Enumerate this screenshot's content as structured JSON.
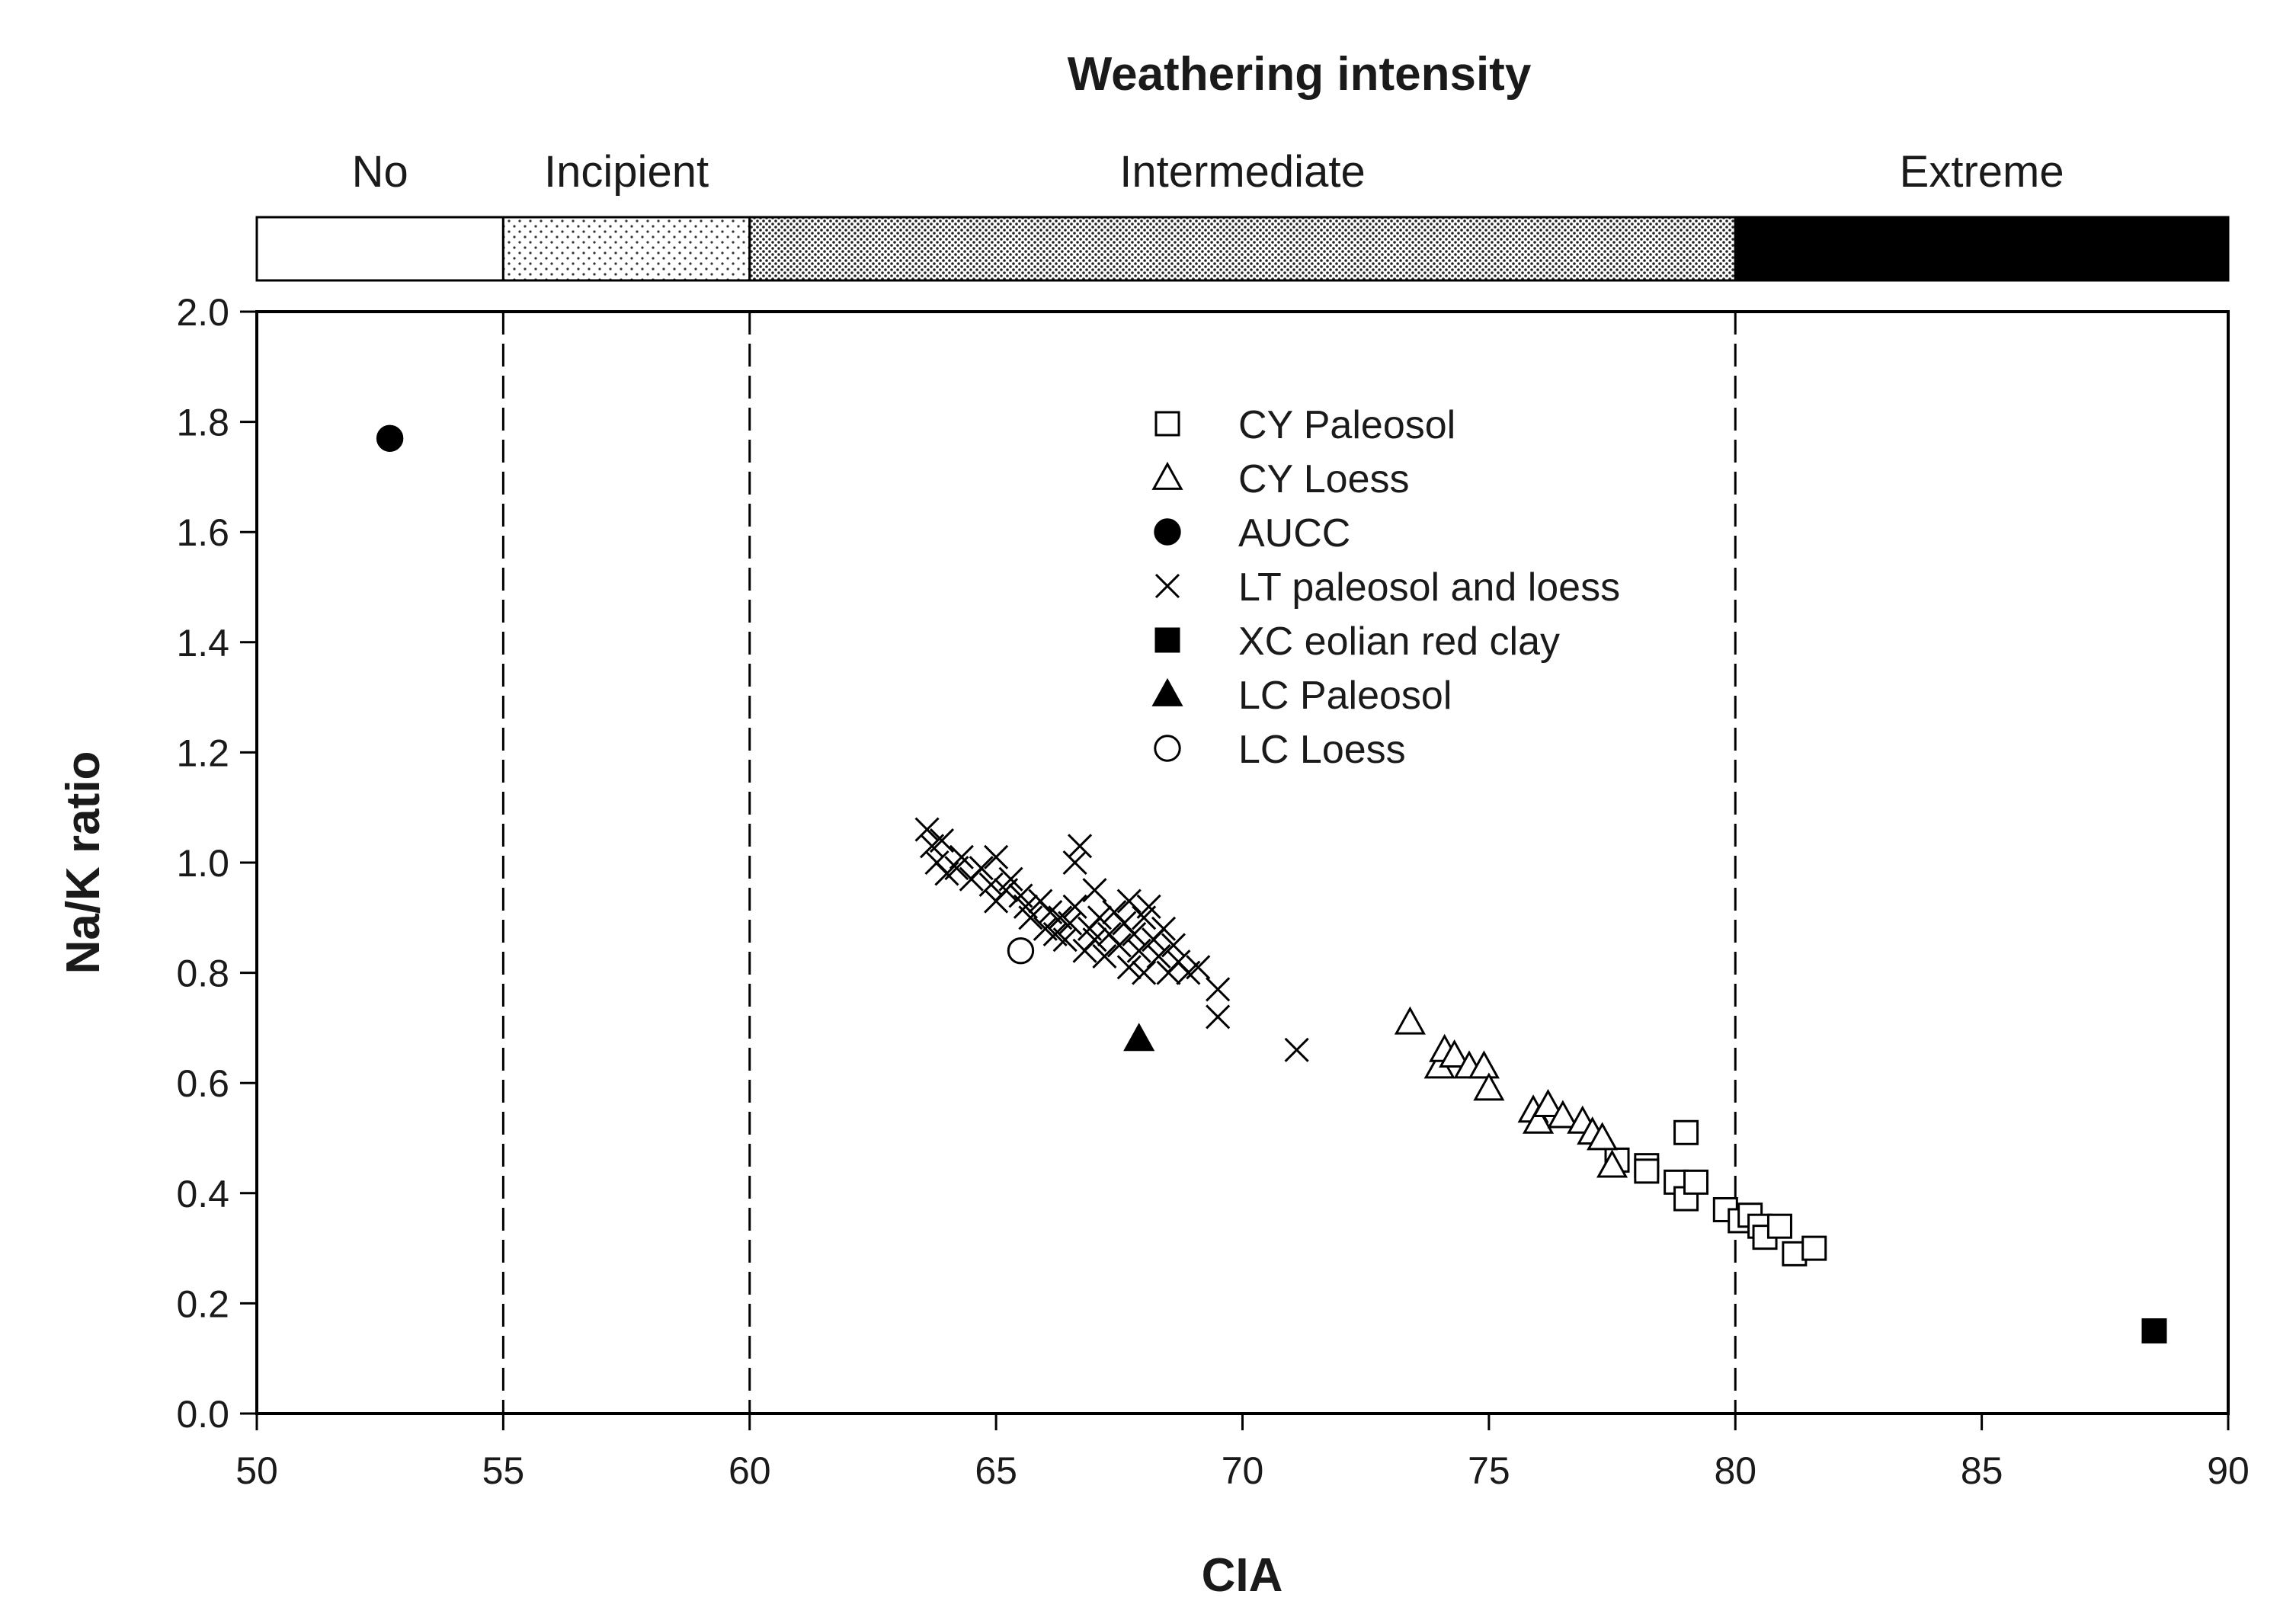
{
  "chart_data": {
    "type": "scatter",
    "title": "Weathering intensity",
    "xlabel": "CIA",
    "ylabel": "Na/K ratio",
    "xlim": [
      50,
      90
    ],
    "ylim": [
      0.0,
      2.0
    ],
    "xticks": [
      "50",
      "55",
      "60",
      "65",
      "70",
      "75",
      "80",
      "85",
      "90"
    ],
    "yticks": [
      "0.0",
      "0.2",
      "0.4",
      "0.6",
      "0.8",
      "1.0",
      "1.2",
      "1.4",
      "1.6",
      "1.8",
      "2.0"
    ],
    "intensity_zones": [
      {
        "label": "No",
        "from": 50,
        "to": 55,
        "fill": "none"
      },
      {
        "label": "Incipient",
        "from": 55,
        "to": 60,
        "fill": "sparse-dots"
      },
      {
        "label": "Intermediate",
        "from": 60,
        "to": 80,
        "fill": "dense-dots"
      },
      {
        "label": "Extreme",
        "from": 80,
        "to": 90,
        "fill": "solid"
      }
    ],
    "vlines": [
      55,
      60,
      80
    ],
    "series": [
      {
        "name": "CY Paleosol",
        "marker": "square-open",
        "points": [
          [
            77.6,
            0.46
          ],
          [
            78.2,
            0.45
          ],
          [
            78.2,
            0.44
          ],
          [
            78.8,
            0.42
          ],
          [
            79.0,
            0.39
          ],
          [
            79.2,
            0.42
          ],
          [
            79.0,
            0.51
          ],
          [
            79.8,
            0.37
          ],
          [
            80.1,
            0.35
          ],
          [
            80.3,
            0.36
          ],
          [
            80.5,
            0.34
          ],
          [
            80.6,
            0.32
          ],
          [
            80.9,
            0.34
          ],
          [
            81.2,
            0.29
          ],
          [
            81.6,
            0.3
          ]
        ]
      },
      {
        "name": "CY Loess",
        "marker": "triangle-open",
        "points": [
          [
            73.4,
            0.71
          ],
          [
            74.0,
            0.63
          ],
          [
            74.1,
            0.66
          ],
          [
            74.3,
            0.65
          ],
          [
            74.6,
            0.63
          ],
          [
            74.9,
            0.63
          ],
          [
            75.0,
            0.59
          ],
          [
            75.9,
            0.55
          ],
          [
            76.0,
            0.53
          ],
          [
            76.2,
            0.56
          ],
          [
            76.5,
            0.54
          ],
          [
            76.9,
            0.53
          ],
          [
            77.1,
            0.51
          ],
          [
            77.3,
            0.5
          ],
          [
            77.5,
            0.45
          ]
        ]
      },
      {
        "name": "AUCC",
        "marker": "circle-filled",
        "points": [
          [
            52.7,
            1.77
          ]
        ]
      },
      {
        "name": "LT paleosol and loess",
        "marker": "cross",
        "points": [
          [
            63.6,
            1.06
          ],
          [
            63.7,
            1.03
          ],
          [
            63.8,
            1.0
          ],
          [
            63.9,
            1.04
          ],
          [
            64.0,
            0.98
          ],
          [
            64.2,
            0.99
          ],
          [
            64.3,
            1.01
          ],
          [
            64.5,
            0.97
          ],
          [
            64.7,
            0.99
          ],
          [
            64.9,
            0.96
          ],
          [
            65.0,
            1.01
          ],
          [
            65.0,
            0.93
          ],
          [
            65.2,
            0.95
          ],
          [
            65.3,
            0.97
          ],
          [
            65.5,
            0.94
          ],
          [
            65.6,
            0.92
          ],
          [
            65.7,
            0.9
          ],
          [
            65.9,
            0.93
          ],
          [
            66.0,
            0.88
          ],
          [
            66.1,
            0.91
          ],
          [
            66.2,
            0.87
          ],
          [
            66.3,
            0.9
          ],
          [
            66.4,
            0.86
          ],
          [
            66.5,
            0.89
          ],
          [
            66.6,
            0.92
          ],
          [
            66.6,
            1.0
          ],
          [
            66.7,
            1.03
          ],
          [
            66.8,
            0.84
          ],
          [
            66.9,
            0.88
          ],
          [
            67.0,
            0.95
          ],
          [
            67.0,
            0.86
          ],
          [
            67.1,
            0.9
          ],
          [
            67.2,
            0.83
          ],
          [
            67.3,
            0.87
          ],
          [
            67.4,
            0.91
          ],
          [
            67.5,
            0.85
          ],
          [
            67.6,
            0.89
          ],
          [
            67.7,
            0.93
          ],
          [
            67.7,
            0.81
          ],
          [
            67.8,
            0.87
          ],
          [
            67.9,
            0.84
          ],
          [
            68.0,
            0.9
          ],
          [
            68.0,
            0.8
          ],
          [
            68.1,
            0.92
          ],
          [
            68.2,
            0.86
          ],
          [
            68.3,
            0.83
          ],
          [
            68.4,
            0.88
          ],
          [
            68.5,
            0.8
          ],
          [
            68.6,
            0.85
          ],
          [
            68.7,
            0.82
          ],
          [
            68.9,
            0.8
          ],
          [
            69.1,
            0.81
          ],
          [
            69.5,
            0.77
          ],
          [
            69.5,
            0.72
          ],
          [
            71.1,
            0.66
          ]
        ]
      },
      {
        "name": "XC eolian red clay",
        "marker": "square-filled",
        "points": [
          [
            88.5,
            0.15
          ]
        ]
      },
      {
        "name": "LC Paleosol",
        "marker": "triangle-filled",
        "points": [
          [
            67.9,
            0.68
          ]
        ]
      },
      {
        "name": "LC Loess",
        "marker": "circle-open",
        "points": [
          [
            65.5,
            0.84
          ]
        ]
      }
    ],
    "legend_position": "upper-center"
  }
}
